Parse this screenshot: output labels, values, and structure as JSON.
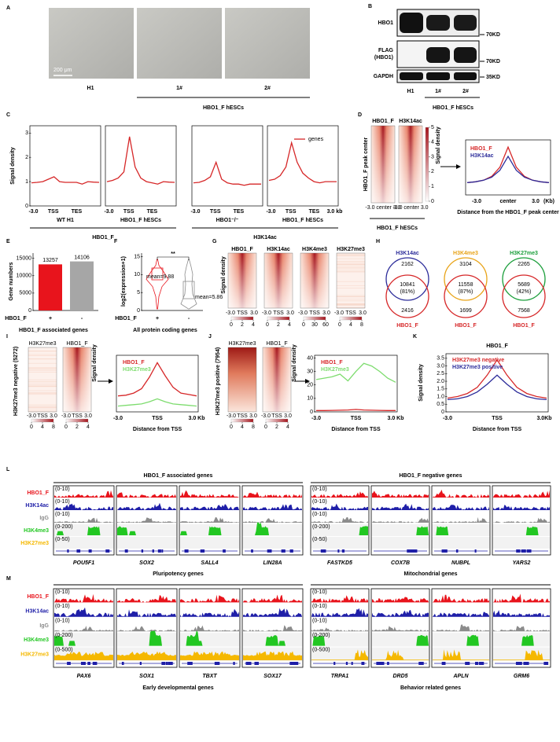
{
  "A": {
    "letter": "A",
    "scale_bar": "200 μm",
    "lanes": [
      "H1",
      "1#",
      "2#"
    ],
    "group": "HBO1_F hESCs"
  },
  "B": {
    "letter": "B",
    "rows": [
      [
        "HBO1"
      ],
      [
        "FLAG",
        "(HBO1)"
      ],
      [
        "GAPDH"
      ]
    ],
    "markers": [
      "70KD",
      "70KD",
      "35KD"
    ],
    "lanes": [
      "H1",
      "1#",
      "2#"
    ],
    "group": "HBO1_F hESCs"
  },
  "C": {
    "letter": "C",
    "y_label": "Signal density",
    "yticks": [
      0,
      1,
      2,
      3
    ],
    "ylim": [
      0,
      3.3
    ],
    "legend": "genes",
    "color": "#d62728",
    "plots": [
      {
        "title": "WT H1",
        "x_labels": [
          "-3.0",
          "TSS",
          "TES"
        ],
        "values": [
          0.95,
          0.97,
          1.0,
          1.1,
          1.2,
          1.0,
          0.97,
          0.97,
          0.97,
          0.9,
          1.0,
          0.98,
          0.97
        ]
      },
      {
        "title": "HBO1_F hESCs",
        "x_labels": [
          "-3.0",
          "TSS",
          "TES"
        ],
        "values": [
          1.0,
          1.05,
          1.15,
          1.4,
          2.85,
          1.6,
          1.15,
          1.0,
          0.95,
          0.9,
          1.0,
          0.98,
          0.97
        ]
      },
      {
        "title": "HBO1⁻/⁻",
        "x_labels": [
          "-3.0",
          "TSS",
          "TES"
        ],
        "values": [
          0.95,
          0.97,
          1.05,
          1.2,
          1.8,
          1.1,
          0.95,
          0.9,
          0.9,
          0.85,
          0.9,
          0.9,
          0.9
        ]
      },
      {
        "title": "HBO1_F hESCs",
        "x_labels": [
          "-3.0",
          "TSS",
          "TES",
          "3.0 kb"
        ],
        "values": [
          1.05,
          1.1,
          1.25,
          1.6,
          2.6,
          1.8,
          1.35,
          1.15,
          1.0,
          0.95,
          1.0,
          1.0,
          1.0
        ]
      }
    ],
    "groups": [
      "HBO1_F",
      "H3K14ac"
    ]
  },
  "D": {
    "letter": "D",
    "heatmaps": [
      "HBO1_F",
      "H3K14ac"
    ],
    "row_label": "HBO1_F peak center",
    "heatmap_x": [
      "-3.0 center 3.0",
      "-3.0 center 3.0"
    ],
    "colorbar_label": "Signal density",
    "colorbar_ticks": [
      0,
      1,
      2,
      3,
      4,
      5
    ],
    "caption": "HBO1_F hESCs",
    "profile": {
      "series": [
        {
          "name": "HBO1_F",
          "color": "#d62728",
          "values": [
            0.8,
            0.85,
            0.95,
            1.2,
            1.8,
            3.1,
            1.8,
            1.2,
            0.95,
            0.85,
            0.8
          ]
        },
        {
          "name": "H3K14ac",
          "color": "#2c2c9a",
          "values": [
            0.8,
            0.85,
            0.95,
            1.15,
            1.6,
            2.5,
            1.6,
            1.15,
            0.95,
            0.85,
            0.8
          ]
        }
      ],
      "x_labels": [
        "-3.0",
        "center",
        "3.0",
        "(Kb)"
      ],
      "x_title": "Distance from the HBO1_F peak center"
    }
  },
  "E": {
    "letter": "E",
    "y_label": "Gene numbers",
    "yticks": [
      0,
      5000,
      10000,
      15000
    ],
    "ylim": [
      0,
      16500
    ],
    "categories": [
      "+",
      "-"
    ],
    "values": [
      13257,
      14106
    ],
    "colors": [
      "#e8141c",
      "#a6a6a6"
    ],
    "x_label": "HBO1_F",
    "caption": "HBO1_F associated genes"
  },
  "F": {
    "letter": "F",
    "y_label": "log2(expression+1)",
    "yticks": [
      0,
      5,
      10,
      15
    ],
    "ylim": [
      0,
      16
    ],
    "categories": [
      "+",
      "-"
    ],
    "colors": [
      "#e8141c",
      "#8c8c8c"
    ],
    "annotations": [
      "mean=9.88",
      "mean=5.86"
    ],
    "significance": "**",
    "x_label": "HBO1_F",
    "caption": "All protein coding genes"
  },
  "G": {
    "letter": "G",
    "heatmaps": [
      {
        "title": "HBO1_F",
        "ticks": [
          0,
          2,
          4
        ]
      },
      {
        "title": "H3K14ac",
        "ticks": [
          0,
          2,
          4
        ]
      },
      {
        "title": "H3K4me3",
        "ticks": [
          0,
          30,
          60
        ]
      },
      {
        "title": "H3K27me3",
        "ticks": [
          0,
          4,
          8
        ]
      }
    ],
    "y_label": "Signal density",
    "x_labels": [
      "-3.0",
      "TSS",
      "3.0"
    ]
  },
  "H": {
    "letter": "H",
    "venns": [
      {
        "top": "H3K14ac",
        "top_color": "#2c2c9a",
        "top_only": 2162,
        "overlap": 10841,
        "overlap_pct": "(81%)",
        "bottom_only": 2416,
        "bottom": "HBO1_F"
      },
      {
        "top": "H3K4me3",
        "top_color": "#e8a317",
        "top_only": 3104,
        "overlap": 11558,
        "overlap_pct": "(87%)",
        "bottom_only": 1699,
        "bottom": "HBO1_F"
      },
      {
        "top": "H3K27me3",
        "top_color": "#1a9e3a",
        "top_only": 2265,
        "overlap": 5689,
        "overlap_pct": "(42%)",
        "bottom_only": 7568,
        "bottom": "HBO1_F"
      }
    ]
  },
  "I": {
    "letter": "I",
    "y_label": "H3K27me3 negative (5272)",
    "heatmaps": [
      {
        "title": "H3K27me3",
        "ticks": [
          0,
          4,
          8
        ]
      },
      {
        "title": "HBO1_F",
        "ticks": [
          0,
          2,
          4
        ]
      }
    ],
    "colorbar_label": "Signal density",
    "x_labels": [
      "-3.0",
      "TSS",
      "3.0"
    ],
    "profile": {
      "series": [
        {
          "name": "HBO1_F",
          "color": "#d62728",
          "values": [
            1.1,
            1.15,
            1.3,
            1.6,
            2.4,
            3.4,
            2.5,
            1.7,
            1.3,
            1.2,
            1.1
          ]
        },
        {
          "name": "H3K27me3",
          "color": "#7ddc6e",
          "values": [
            0.4,
            0.45,
            0.5,
            0.55,
            0.7,
            0.9,
            0.7,
            0.55,
            0.5,
            0.45,
            0.4
          ]
        }
      ],
      "x_labels": [
        "-3.0",
        "TSS",
        "3.0 Kb"
      ],
      "x_title": "Distance from TSS"
    }
  },
  "J": {
    "letter": "J",
    "y_label": "H3K27me3 positive (7954)",
    "heatmaps": [
      {
        "title": "H3K27me3",
        "ticks": [
          0,
          4,
          8
        ]
      },
      {
        "title": "HBO1_F",
        "ticks": [
          0,
          2,
          4
        ]
      }
    ],
    "colorbar_label": "Signal density",
    "x_labels": [
      "-3.0",
      "TSS",
      "3.0"
    ],
    "profile": {
      "yticks": [
        0,
        10,
        20,
        30,
        40
      ],
      "ylim": [
        0,
        42
      ],
      "series": [
        {
          "name": "HBO1_F",
          "color": "#d62728",
          "values": [
            1,
            1,
            1.1,
            1.2,
            1.4,
            1.8,
            1.4,
            1.2,
            1.1,
            1,
            1
          ]
        },
        {
          "name": "H3K27me3",
          "color": "#7ddc6e",
          "values": [
            24,
            25,
            26,
            28,
            23,
            30,
            36,
            34,
            30,
            25,
            22
          ]
        }
      ],
      "x_labels": [
        "-3.0",
        "TSS",
        "3.0 Kb"
      ],
      "x_title": "Distance from TSS"
    }
  },
  "K": {
    "letter": "K",
    "title": "HBO1_F",
    "y_label": "Signal density",
    "yticks": [
      0,
      0.5,
      {
        "value": 1,
        "label": "1.0"
      },
      1.5,
      {
        "value": 2,
        "label": "2.0"
      },
      2.5,
      {
        "value": 3,
        "label": "3.0"
      },
      3.5
    ],
    "ylim": [
      0,
      3.8
    ],
    "series": [
      {
        "name": "H3K27me3 negative",
        "color": "#d62728",
        "values": [
          0.9,
          1.0,
          1.2,
          1.6,
          2.4,
          3.4,
          2.4,
          1.6,
          1.2,
          1.0,
          0.9
        ]
      },
      {
        "name": "H3K27me3 positive",
        "color": "#2c2c9a",
        "values": [
          0.8,
          0.85,
          1.0,
          1.3,
          1.8,
          2.4,
          1.8,
          1.3,
          1.0,
          0.85,
          0.8
        ]
      }
    ],
    "x_labels": [
      "-3.0",
      "TSS",
      "3.0Kb"
    ],
    "x_title": "Distance from TSS"
  },
  "L": {
    "letter": "L",
    "tracks": [
      {
        "name": "HBO1_F",
        "color": "#e8141c",
        "range": "(0-10)"
      },
      {
        "name": "H3K14ac",
        "color": "#1f1fa8",
        "range": "(0-10)"
      },
      {
        "name": "IgG",
        "color": "#8c8c8c",
        "range": "(0-10)"
      },
      {
        "name": "H3K4me3",
        "color": "#22c722",
        "range": "(0-200)"
      },
      {
        "name": "H3K27me3",
        "color": "#f5b800",
        "range": "(0-50)"
      }
    ],
    "groups": [
      {
        "title": "HBO1_F associated genes",
        "genes": [
          "POU5F1",
          "SOX2",
          "SALL4",
          "LIN28A"
        ],
        "caption": "Pluripotency genes"
      },
      {
        "title": "HBO1_F negative genes",
        "genes": [
          "FASTKD5",
          "COX7B",
          "NUBPL",
          "YARS2"
        ],
        "caption": "Mitochondrial genes"
      }
    ]
  },
  "M": {
    "letter": "M",
    "tracks": [
      {
        "name": "HBO1_F",
        "color": "#e8141c",
        "range": "(0-10)"
      },
      {
        "name": "H3K14ac",
        "color": "#1f1fa8",
        "range": "(0-10)"
      },
      {
        "name": "IgG",
        "color": "#8c8c8c",
        "range": "(0-10)"
      },
      {
        "name": "H3K4me3",
        "color": "#22c722",
        "range": "(0-200)"
      },
      {
        "name": "H3K27me3",
        "color": "#f5b800",
        "range": "(0-500)"
      }
    ],
    "groups": [
      {
        "genes": [
          "PAX6",
          "SOX1",
          "TBXT",
          "SOX17"
        ],
        "caption": "Early developmental genes"
      },
      {
        "genes": [
          "TRPA1",
          "DRD5",
          "APLN",
          "GRM6"
        ],
        "caption": "Behavior related genes"
      }
    ]
  }
}
